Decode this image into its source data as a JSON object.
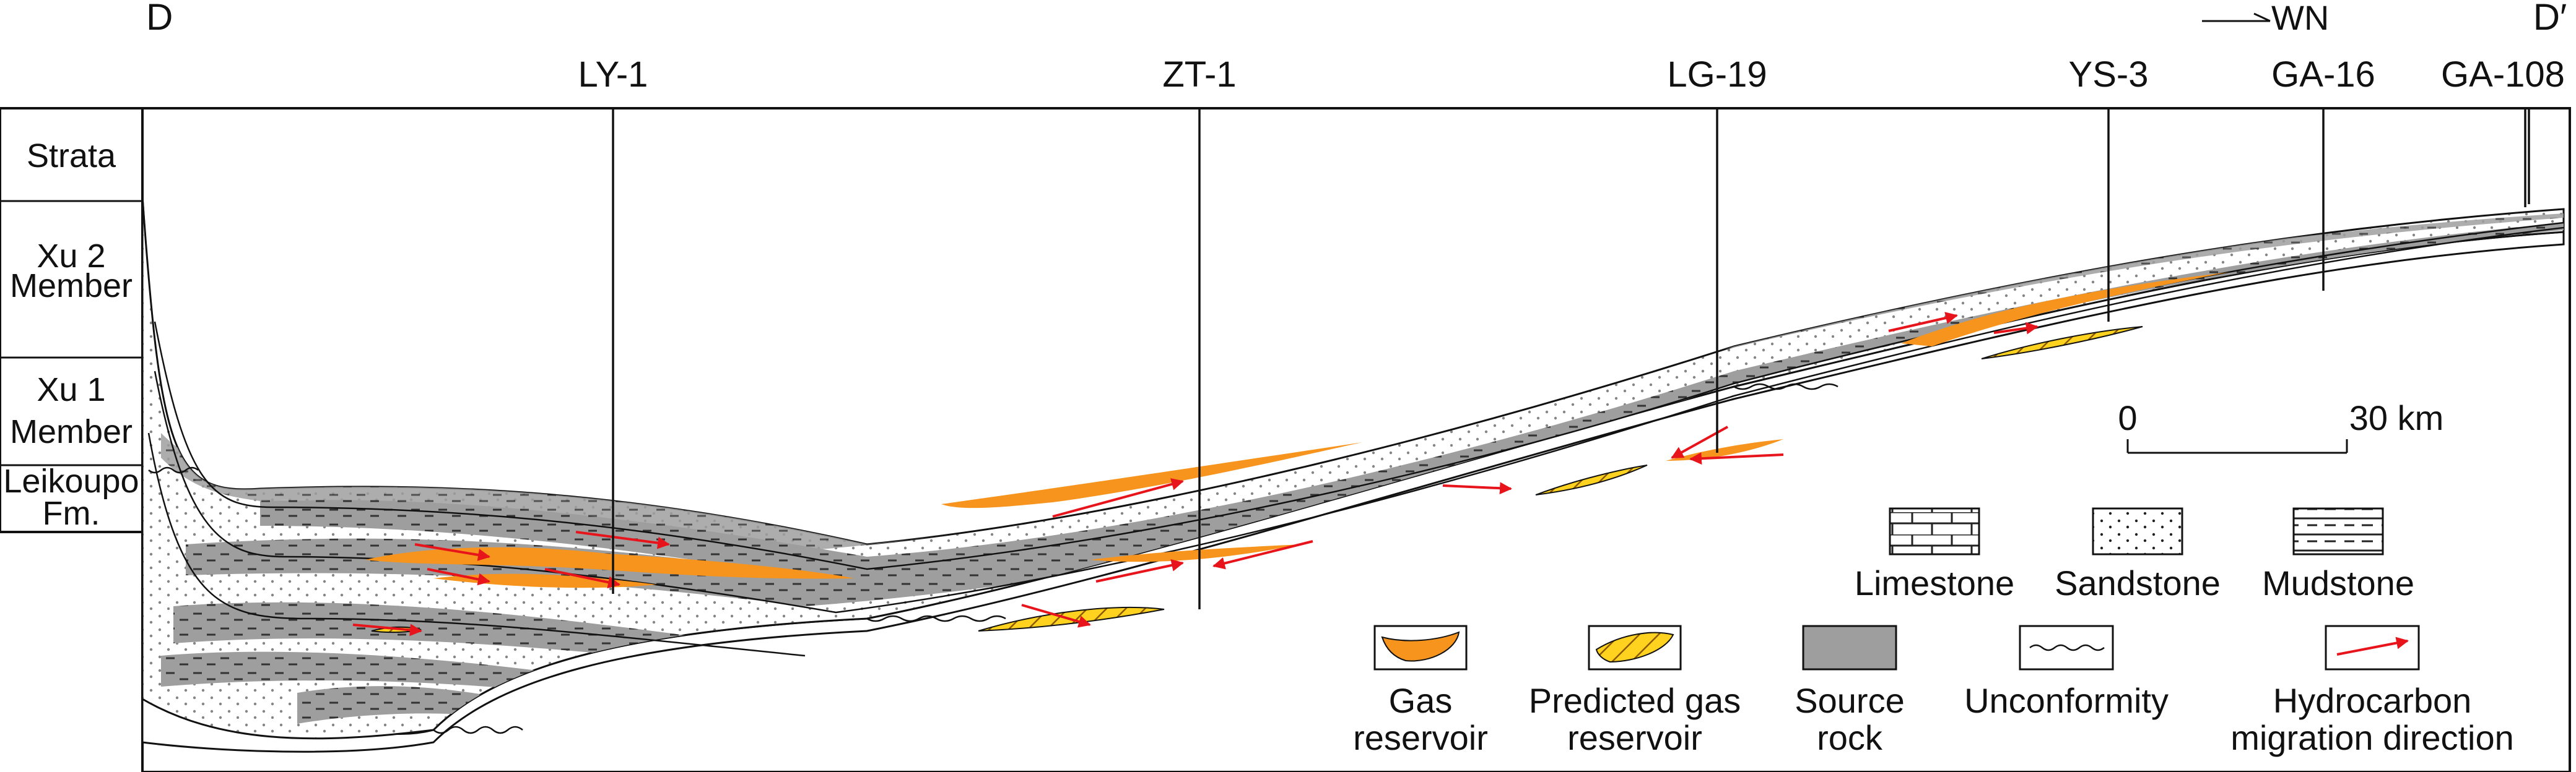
{
  "section": {
    "start_label": "D",
    "end_label": "D′",
    "direction_label": "WN"
  },
  "wells": [
    "LY-1",
    "ZT-1",
    "LG-19",
    "YS-3",
    "GA-16",
    "GA-108"
  ],
  "strata": {
    "header": "Strata",
    "rows": [
      {
        "line1": "Xu 2",
        "line2": "Member"
      },
      {
        "line1": "Xu 1",
        "line2": "Member"
      },
      {
        "line1": "Leikoupo",
        "line2": "Fm."
      }
    ]
  },
  "scale": {
    "start": "0",
    "end": "30 km"
  },
  "legend": {
    "limestone": "Limestone",
    "sandstone": "Sandstone",
    "mudstone": "Mudstone",
    "gas_reservoir": {
      "line1": "Gas",
      "line2": "reservoir"
    },
    "predicted_gas_reservoir": {
      "line1": "Predicted gas",
      "line2": "reservoir"
    },
    "source_rock": {
      "line1": "Source",
      "line2": "rock"
    },
    "unconformity": "Unconformity",
    "migration": {
      "line1": "Hydrocarbon",
      "line2": "migration direction"
    }
  },
  "colors": {
    "gas_reservoir": "#f7941d",
    "predicted_gas_fill": "#ffd21f",
    "source_rock": "#9e9e9e",
    "migration_arrow": "#e8141b",
    "line": "#111111"
  }
}
